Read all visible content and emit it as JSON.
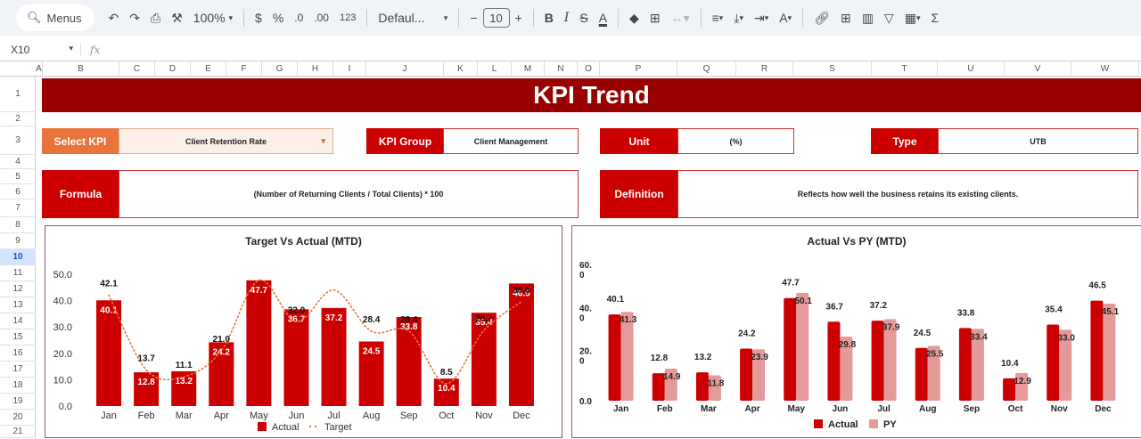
{
  "toolbar": {
    "menus_label": "Menus",
    "zoom": "100%",
    "currency": "$",
    "percent": "%",
    "decrease_decimal": ".0",
    "increase_decimal": ".00",
    "number_format": "123",
    "font": "Defaul...",
    "font_size": "10",
    "bold": "B",
    "italic": "I",
    "sum": "Σ"
  },
  "formula_bar": {
    "cell_ref": "X10",
    "fx": "fx",
    "value": ""
  },
  "columns": [
    "A",
    "B",
    "C",
    "D",
    "E",
    "F",
    "G",
    "H",
    "I",
    "J",
    "K",
    "L",
    "M",
    "N",
    "O",
    "P",
    "Q",
    "R",
    "S",
    "T",
    "U",
    "V",
    "W"
  ],
  "rows": [
    "1",
    "2",
    "3",
    "4",
    "5",
    "6",
    "7",
    "8",
    "9",
    "10",
    "11",
    "12",
    "13",
    "14",
    "15",
    "16",
    "17",
    "18",
    "19",
    "20",
    "21"
  ],
  "selected_row": "10",
  "dashboard": {
    "title": "KPI Trend",
    "select_kpi_label": "Select KPI",
    "select_kpi_value": "Client Retention Rate",
    "kpi_group_label": "KPI Group",
    "kpi_group_value": "Client Management",
    "unit_label": "Unit",
    "unit_value": "(%)",
    "type_label": "Type",
    "type_value": "UTB",
    "formula_label": "Formula",
    "formula_value": "(Number of Returning Clients / Total Clients) * 100",
    "definition_label": "Definition",
    "definition_value": "Reflects how well the business retains its existing clients.",
    "colors": {
      "banner": "#990000",
      "label": "#cc0000",
      "select_label": "#e8743b",
      "select_bg": "#fdeee8"
    }
  },
  "chart_data": [
    {
      "type": "bar",
      "title": "Target Vs Actual (MTD)",
      "categories": [
        "Jan",
        "Feb",
        "Mar",
        "Apr",
        "May",
        "Jun",
        "Jul",
        "Aug",
        "Sep",
        "Oct",
        "Nov",
        "Dec"
      ],
      "series": [
        {
          "name": "Actual",
          "kind": "bar",
          "color": "#cc0000",
          "values": [
            40.1,
            12.8,
            13.2,
            24.2,
            47.7,
            36.7,
            37.2,
            24.5,
            33.8,
            10.4,
            35.4,
            46.5
          ]
        },
        {
          "name": "Target",
          "kind": "line-dotted",
          "color": "#e8743b",
          "values": [
            42.1,
            13.7,
            11.1,
            21.0,
            47.7,
            32.0,
            44.0,
            28.4,
            28.4,
            8.5,
            28.7,
            39.6
          ],
          "labels": [
            "42.1",
            "13.7",
            "11.1",
            "21.0",
            "",
            "32.0",
            "",
            "28.4",
            "28.4",
            "8.5",
            "28.7",
            "39.6"
          ]
        }
      ],
      "yticks": [
        "0.0",
        "10.0",
        "20.0",
        "30.0",
        "40.0",
        "50.0"
      ],
      "ylim": [
        0,
        50
      ],
      "legend": [
        "Actual",
        "Target"
      ],
      "legend_position": "bottom"
    },
    {
      "type": "bar",
      "title": "Actual Vs PY (MTD)",
      "categories": [
        "Jan",
        "Feb",
        "Mar",
        "Apr",
        "May",
        "Jun",
        "Jul",
        "Aug",
        "Sep",
        "Oct",
        "Nov",
        "Dec"
      ],
      "series": [
        {
          "name": "Actual",
          "color": "#cc0000",
          "values": [
            40.1,
            12.8,
            13.2,
            24.2,
            47.7,
            36.7,
            37.2,
            24.5,
            33.8,
            10.4,
            35.4,
            46.5
          ]
        },
        {
          "name": "PY",
          "color": "#e59a9a",
          "values": [
            41.3,
            14.9,
            11.8,
            23.9,
            50.1,
            29.8,
            37.9,
            25.5,
            33.4,
            12.9,
            33.0,
            45.1
          ]
        }
      ],
      "yticks": [
        "0.0",
        "20.\n0",
        "40.\n0",
        "60.\n0"
      ],
      "ylim": [
        0,
        60
      ],
      "legend": [
        "Actual",
        "PY"
      ],
      "legend_position": "bottom"
    }
  ]
}
